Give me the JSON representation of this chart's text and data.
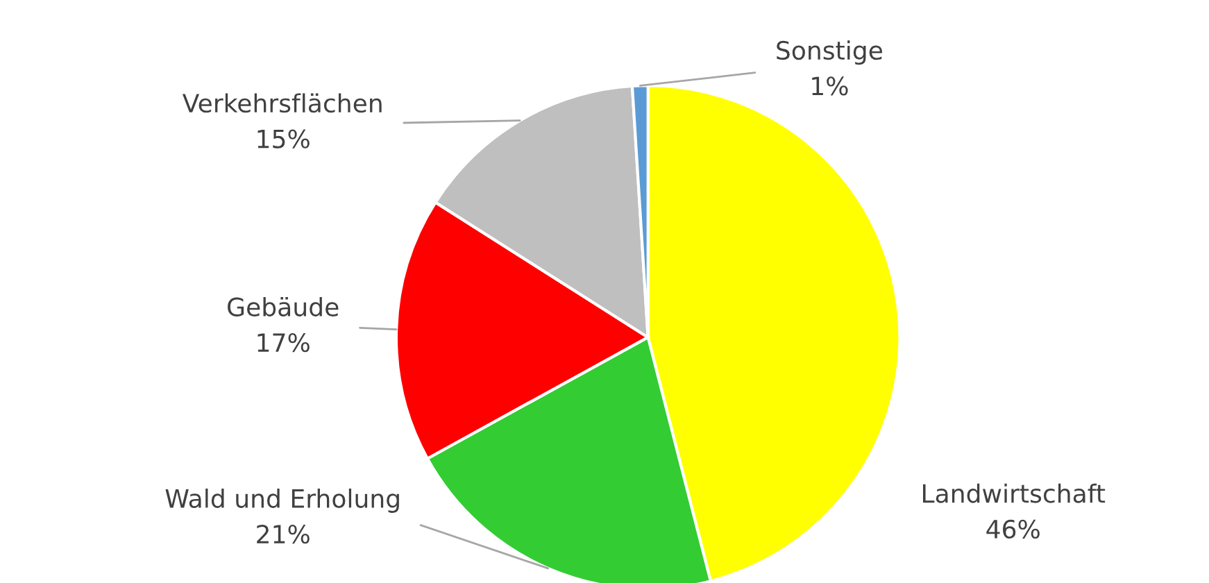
{
  "chart_data": {
    "type": "pie",
    "categories": [
      "Landwirtschaft",
      "Wald und Erholung",
      "Gebäude",
      "Verkehrsflächen",
      "Sonstige"
    ],
    "values": [
      46,
      21,
      17,
      15,
      1
    ],
    "colors": [
      "#ffff00",
      "#33cc33",
      "#ff0000",
      "#bfbfbf",
      "#5b9bd5"
    ],
    "value_labels": [
      "46%",
      "21%",
      "17%",
      "15%",
      "1%"
    ]
  }
}
